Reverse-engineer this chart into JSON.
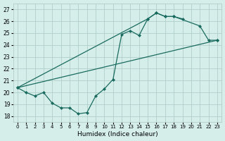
{
  "xlabel": "Humidex (Indice chaleur)",
  "background_color": "#d5eeea",
  "grid_color": "#b0ceca",
  "line_color": "#1a6b5f",
  "xlim": [
    -0.5,
    23.5
  ],
  "ylim": [
    17.5,
    27.5
  ],
  "xticks": [
    0,
    1,
    2,
    3,
    4,
    5,
    6,
    7,
    8,
    9,
    10,
    11,
    12,
    13,
    14,
    15,
    16,
    17,
    18,
    19,
    20,
    21,
    22,
    23
  ],
  "yticks": [
    18,
    19,
    20,
    21,
    22,
    23,
    24,
    25,
    26,
    27
  ],
  "series0_x": [
    0,
    1,
    2,
    3,
    4,
    5,
    6,
    7,
    8,
    9,
    10,
    11,
    12,
    13,
    14,
    15,
    16,
    17,
    18,
    19
  ],
  "series0_y": [
    20.4,
    20.0,
    19.7,
    20.0,
    19.1,
    18.7,
    18.7,
    18.2,
    18.3,
    19.7,
    20.3,
    21.1,
    24.9,
    25.2,
    24.8,
    26.2,
    26.7,
    26.4,
    26.4,
    26.2
  ],
  "series1_x": [
    0,
    15,
    16,
    17,
    18,
    21,
    22,
    23
  ],
  "series1_y": [
    20.4,
    26.2,
    26.7,
    26.4,
    26.4,
    25.6,
    24.4,
    24.4
  ],
  "series2_x": [
    0,
    21,
    22,
    23
  ],
  "series2_y": [
    20.4,
    25.6,
    24.4,
    24.4
  ],
  "series3_x": [
    0,
    23
  ],
  "series3_y": [
    20.4,
    24.4
  ],
  "marker": "D",
  "markersize": 2.0,
  "linewidth": 0.9
}
